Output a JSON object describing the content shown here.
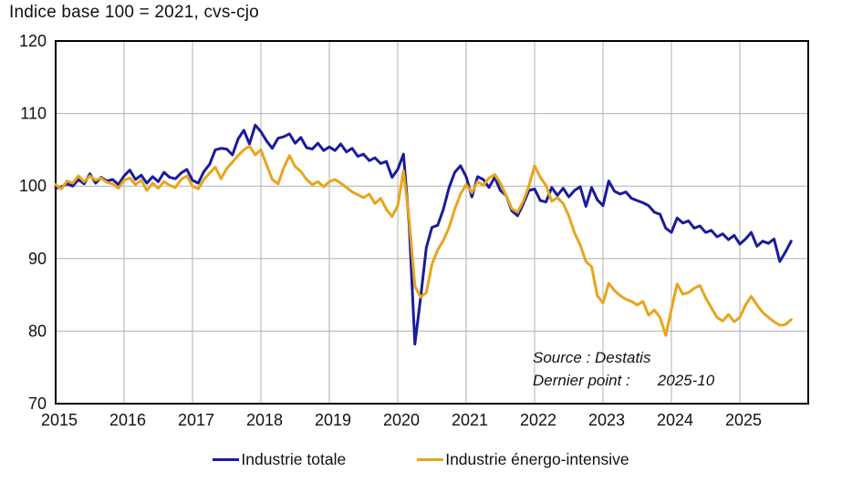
{
  "chart_data": {
    "type": "line",
    "title": "Indice base 100 = 2021, cvs-cjo",
    "xlabel": "",
    "ylabel": "",
    "ylim": [
      70,
      120
    ],
    "y_ticks": [
      120,
      110,
      100,
      90,
      80,
      70
    ],
    "x_tick_years": [
      "2015",
      "2016",
      "2017",
      "2018",
      "2019",
      "2020",
      "2021",
      "2022",
      "2023",
      "2024",
      "2025"
    ],
    "x_axis_span_years": [
      2015,
      2026
    ],
    "grid": true,
    "gridline_color": "#b0b0b0",
    "border_color": "#000000",
    "x_start_month": "2015-01",
    "x_end_month": "2025-10",
    "legend_position": "bottom-center",
    "series": [
      {
        "name": "Industrie totale",
        "color": "#1b1b9b",
        "monthly_values": [
          99.7,
          99.9,
          100.3,
          100.0,
          100.9,
          100.3,
          101.7,
          100.4,
          101.2,
          100.7,
          100.9,
          100.2,
          101.4,
          102.2,
          100.9,
          101.5,
          100.4,
          101.3,
          100.6,
          101.9,
          101.2,
          101.0,
          101.8,
          102.3,
          100.8,
          100.4,
          102.0,
          103.0,
          105.0,
          105.2,
          105.1,
          104.3,
          106.5,
          107.7,
          105.8,
          108.4,
          107.5,
          106.2,
          105.2,
          106.6,
          106.8,
          107.2,
          105.9,
          106.7,
          105.3,
          105.1,
          105.9,
          104.9,
          105.4,
          104.9,
          105.8,
          104.7,
          105.2,
          104.1,
          104.4,
          103.5,
          103.9,
          103.1,
          103.4,
          101.2,
          102.3,
          104.4,
          94.8,
          78.2,
          84.5,
          91.5,
          94.3,
          94.6,
          96.8,
          99.8,
          101.9,
          102.8,
          101.3,
          98.5,
          101.3,
          100.9,
          99.8,
          101.2,
          99.4,
          98.7,
          96.6,
          95.9,
          97.5,
          99.4,
          99.6,
          98.0,
          97.8,
          99.8,
          98.7,
          99.7,
          98.5,
          99.4,
          99.9,
          97.2,
          99.8,
          98.1,
          97.3,
          100.7,
          99.3,
          98.9,
          99.2,
          98.3,
          98.0,
          97.7,
          97.3,
          96.4,
          96.1,
          94.2,
          93.6,
          95.6,
          94.9,
          95.2,
          94.2,
          94.5,
          93.6,
          93.9,
          93.0,
          93.4,
          92.6,
          93.2,
          92.0,
          92.7,
          93.6,
          91.7,
          92.4,
          92.1,
          92.7,
          89.6,
          90.9,
          92.4
        ]
      },
      {
        "name": "Industrie énergo-intensive",
        "color": "#e8a51b",
        "monthly_values": [
          100.2,
          99.6,
          100.7,
          100.4,
          101.4,
          100.6,
          101.4,
          100.8,
          101.1,
          100.5,
          100.3,
          99.7,
          100.8,
          101.1,
          100.2,
          100.8,
          99.4,
          100.4,
          99.7,
          100.6,
          100.1,
          99.8,
          100.9,
          101.4,
          100.0,
          99.6,
          100.9,
          101.8,
          102.6,
          101.0,
          102.4,
          103.3,
          104.2,
          105.0,
          105.5,
          104.3,
          105.0,
          102.9,
          100.9,
          100.3,
          102.5,
          104.2,
          102.7,
          102.0,
          100.9,
          100.2,
          100.6,
          99.9,
          100.6,
          100.9,
          100.4,
          99.8,
          99.2,
          98.8,
          98.4,
          98.9,
          97.6,
          98.3,
          96.8,
          95.8,
          97.3,
          102.1,
          95.5,
          86.2,
          84.7,
          85.3,
          89.2,
          91.2,
          92.5,
          94.3,
          96.8,
          98.9,
          100.2,
          99.1,
          100.6,
          100.1,
          101.1,
          101.6,
          100.4,
          98.7,
          96.9,
          96.4,
          97.9,
          100.0,
          102.8,
          101.2,
          100.1,
          97.9,
          98.4,
          97.6,
          95.9,
          93.5,
          91.9,
          89.6,
          88.9,
          84.9,
          83.9,
          86.6,
          85.6,
          84.9,
          84.4,
          84.1,
          83.6,
          84.1,
          82.2,
          82.9,
          81.9,
          79.4,
          83.0,
          86.5,
          85.1,
          85.3,
          85.9,
          86.3,
          84.6,
          83.2,
          81.9,
          81.4,
          82.3,
          81.3,
          81.9,
          83.6,
          84.8,
          83.6,
          82.6,
          81.9,
          81.3,
          80.8,
          80.9,
          81.6
        ]
      }
    ],
    "annotations": {
      "source_label": "Source : Destatis",
      "last_point_label": "Dernier point :",
      "last_point_value": "2025-10"
    }
  }
}
